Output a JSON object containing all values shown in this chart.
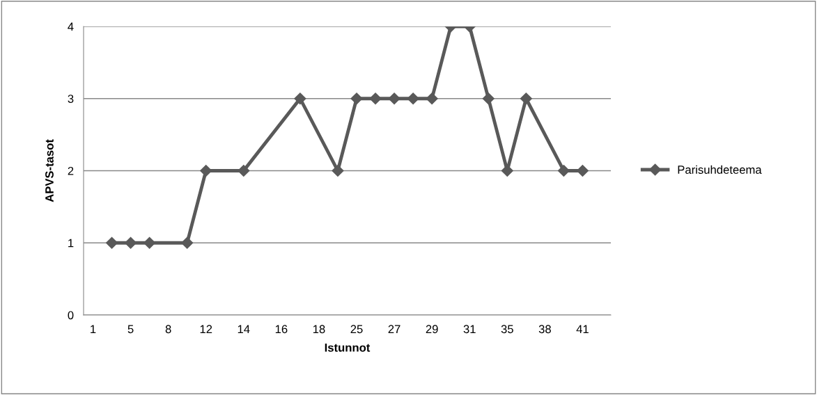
{
  "chart_data": {
    "type": "line",
    "xlabel": "Istunnot",
    "ylabel": "APVS-tasot",
    "categories": [
      "1",
      null,
      "5",
      null,
      "8",
      null,
      "12",
      null,
      "14",
      null,
      "16",
      null,
      "18",
      null,
      "25",
      null,
      "27",
      null,
      "29",
      null,
      "31",
      null,
      "35",
      null,
      "38",
      null,
      "41",
      null
    ],
    "series": [
      {
        "name": "Parisuhdeteema",
        "color": "#595959",
        "values": [
          null,
          1,
          1,
          1,
          null,
          1,
          2,
          null,
          2,
          null,
          null,
          3,
          null,
          2,
          3,
          3,
          3,
          3,
          3,
          4,
          4,
          3,
          2,
          3,
          null,
          2,
          2,
          null
        ]
      }
    ],
    "ylim": [
      0,
      4
    ],
    "yticks": [
      0,
      1,
      2,
      3,
      4
    ],
    "grid": "y",
    "legend": "right",
    "marker": "diamond",
    "line_style": "solid"
  }
}
